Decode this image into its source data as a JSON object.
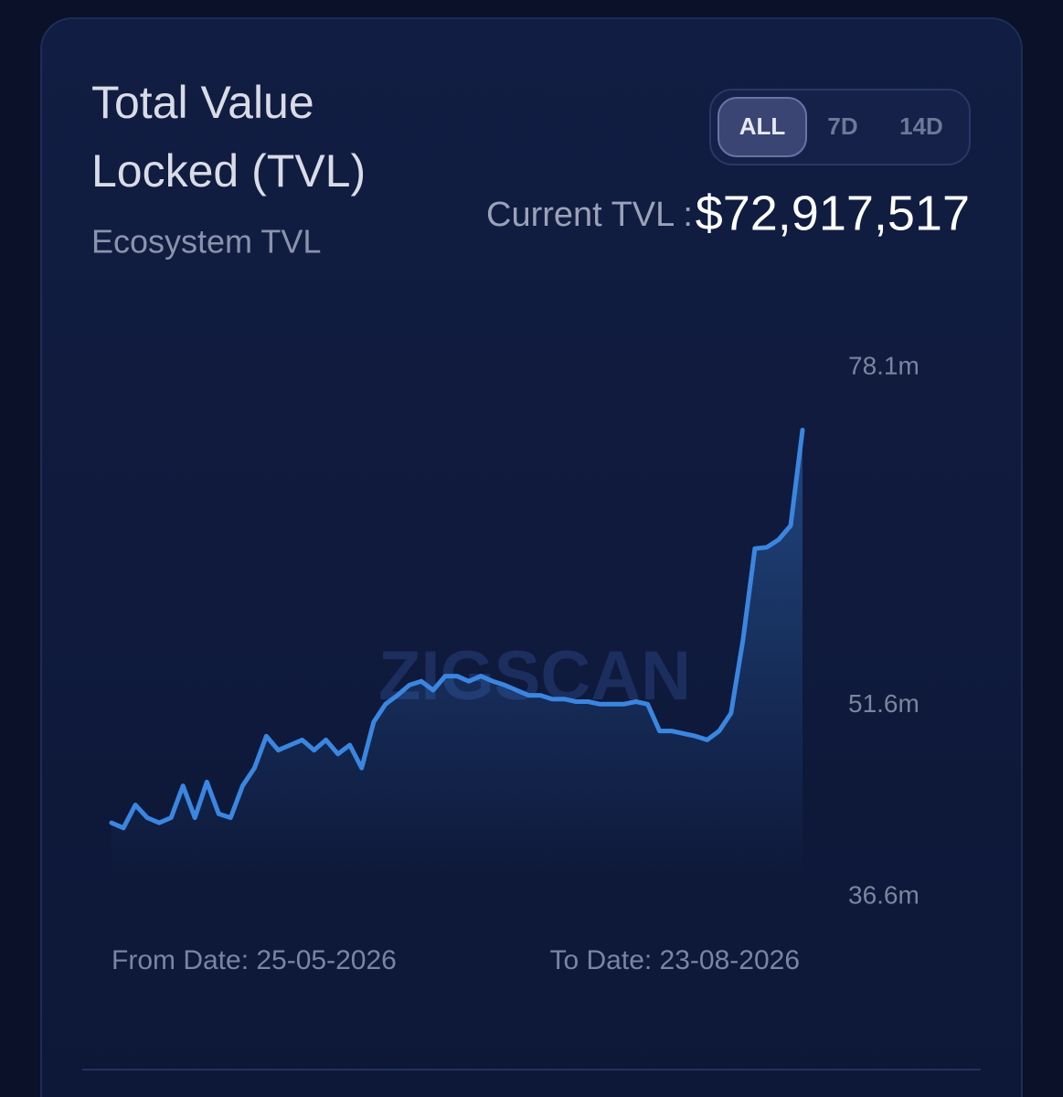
{
  "header": {
    "title_line1": "Total Value",
    "title_line2": "Locked (TVL)",
    "subtitle": "Ecosystem TVL"
  },
  "tabs": [
    "ALL",
    "7D",
    "14D"
  ],
  "current_tvl": {
    "label": "Current TVL :",
    "value": "$72,917,517"
  },
  "chart_data": {
    "type": "line",
    "watermark": "ZIGSCAN",
    "from_date": "From Date: 25-05-2026",
    "to_date": "To Date: 23-08-2026",
    "color": "#3a86e0",
    "ylim": [
      36.6,
      78.1
    ],
    "yticks": [
      {
        "value": 78.1,
        "label": "78.1m"
      },
      {
        "value": 51.6,
        "label": "51.6m"
      },
      {
        "value": 36.6,
        "label": "36.6m"
      }
    ],
    "values": [
      42.4,
      42.0,
      43.8,
      42.8,
      42.4,
      42.8,
      45.3,
      42.8,
      45.6,
      43.1,
      42.8,
      45.3,
      46.7,
      49.2,
      48.1,
      48.5,
      48.9,
      48.1,
      48.9,
      47.8,
      48.5,
      46.7,
      50.3,
      51.7,
      52.4,
      53.2,
      53.5,
      52.8,
      53.9,
      53.9,
      53.5,
      53.9,
      53.5,
      53.2,
      52.8,
      52.4,
      52.4,
      52.1,
      52.1,
      51.9,
      51.9,
      51.7,
      51.7,
      51.7,
      51.9,
      51.7,
      49.6,
      49.6,
      49.4,
      49.2,
      48.9,
      49.6,
      51.0,
      56.7,
      63.9,
      64.0,
      64.6,
      65.7,
      73.2
    ]
  }
}
